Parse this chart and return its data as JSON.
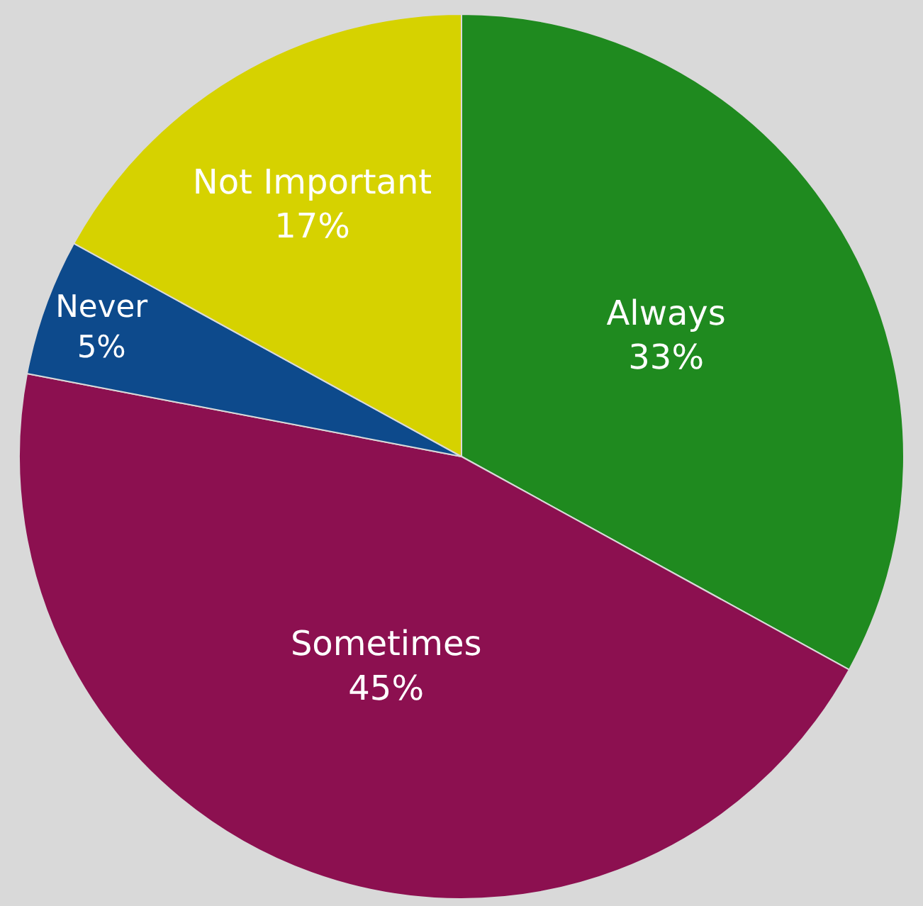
{
  "chart_data": {
    "type": "pie",
    "categories": [
      "Always",
      "Sometimes",
      "Never",
      "Not Important"
    ],
    "values": [
      33,
      45,
      5,
      17
    ],
    "value_labels": [
      "33%",
      "45%",
      "5%",
      "17%"
    ],
    "colors": [
      "#1f8a1f",
      "#8c1050",
      "#0d4a8c",
      "#d6d200"
    ],
    "legend": false
  }
}
